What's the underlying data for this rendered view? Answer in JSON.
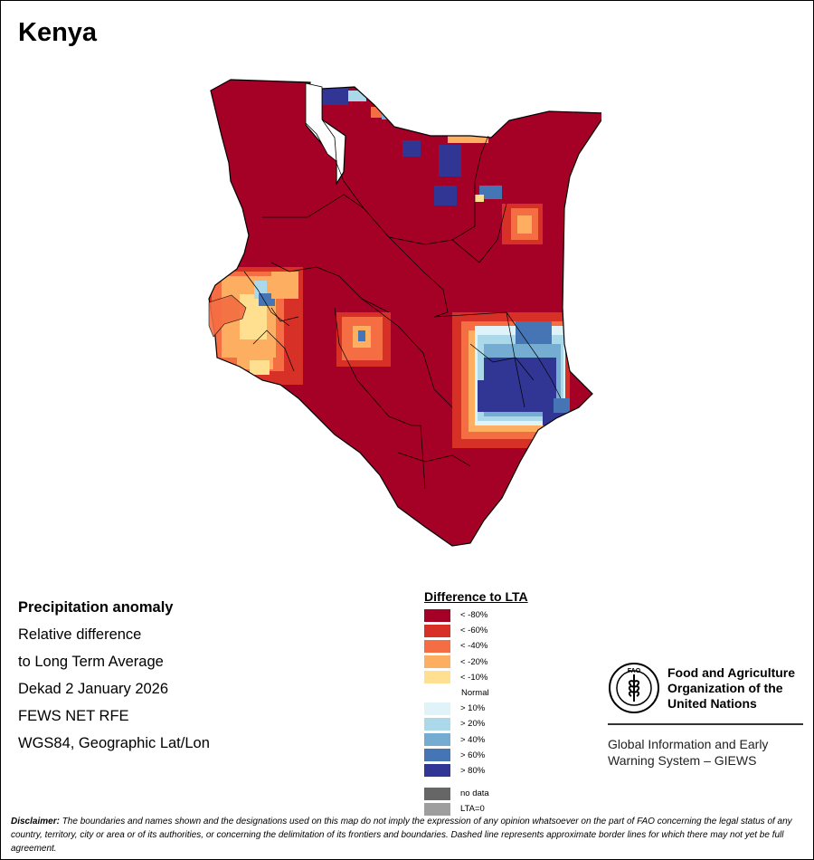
{
  "title": "Kenya",
  "info_lines": [
    "Precipitation anomaly",
    "Relative difference",
    "to Long Term Average",
    "Dekad 2 January 2026",
    "FEWS NET RFE",
    "WGS84, Geographic Lat/Lon"
  ],
  "legend": {
    "title": "Difference to LTA",
    "items": [
      {
        "label": "< -80%",
        "color": "#a50026"
      },
      {
        "label": "< -60%",
        "color": "#d73027"
      },
      {
        "label": "< -40%",
        "color": "#f46d43"
      },
      {
        "label": "< -20%",
        "color": "#fdae61"
      },
      {
        "label": "< -10%",
        "color": "#fee090"
      },
      {
        "label": "Normal",
        "color": "#ffffff"
      },
      {
        "label": "> 10%",
        "color": "#e0f3f8"
      },
      {
        "label": "> 20%",
        "color": "#abd9e9"
      },
      {
        "label": "> 40%",
        "color": "#74add1"
      },
      {
        "label": "> 60%",
        "color": "#4575b4"
      },
      {
        "label": "> 80%",
        "color": "#313695"
      }
    ],
    "extra": [
      {
        "label": "no data",
        "color": "#666666"
      },
      {
        "label": "LTA=0",
        "color": "#9e9e9e"
      }
    ]
  },
  "fao": {
    "emblem_text": "FAO",
    "name_lines": [
      "Food and Agriculture",
      "Organization of the",
      "United Nations"
    ],
    "giews_lines": [
      "Global Information and Early",
      "Warning System – GIEWS"
    ]
  },
  "disclaimer": {
    "lead": "Disclaimer:",
    "text": " The boundaries and names shown and the designations used on this map do not imply the expression of any opinion whatsoever on the part of FAO concerning the legal status of any country, territory, city or area or of its authorities, or concerning the delimitation of its frontiers and boundaries. Dashed line represents approximate border lines for which there may not yet be full agreement."
  }
}
